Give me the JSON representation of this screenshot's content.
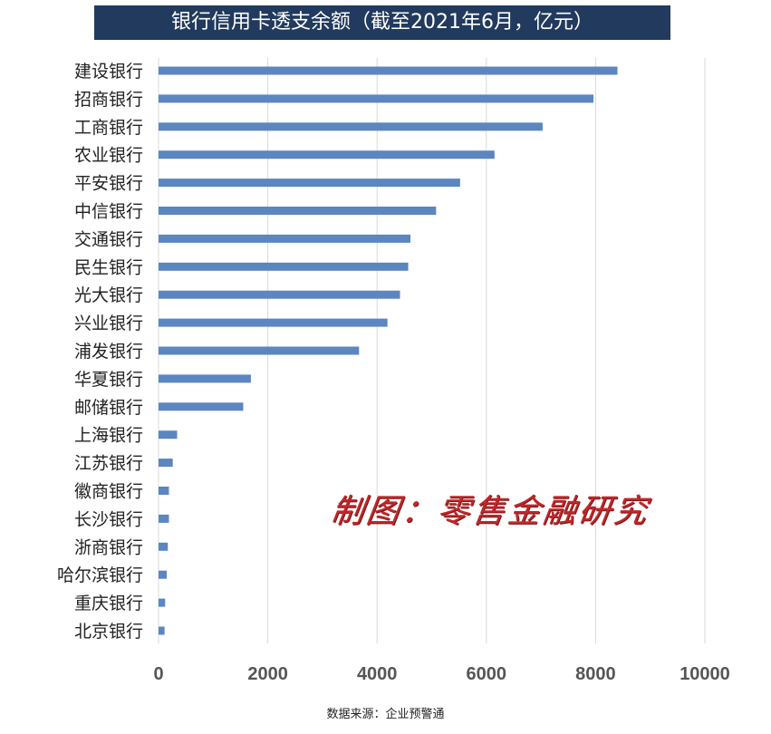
{
  "chart_data": {
    "type": "bar",
    "orientation": "horizontal",
    "title": "银行信用卡透支余额（截至2021年6月，亿元）",
    "categories": [
      "建设银行",
      "招商银行",
      "工商银行",
      "农业银行",
      "平安银行",
      "中信银行",
      "交通银行",
      "民生银行",
      "光大银行",
      "兴业银行",
      "浦发银行",
      "华夏银行",
      "邮储银行",
      "上海银行",
      "江苏银行",
      "徽商银行",
      "长沙银行",
      "浙商银行",
      "哈尔滨银行",
      "重庆银行",
      "北京银行"
    ],
    "values": [
      8400,
      7960,
      7030,
      6150,
      5520,
      5080,
      4610,
      4570,
      4420,
      4190,
      3670,
      1690,
      1550,
      340,
      260,
      190,
      190,
      170,
      150,
      120,
      110
    ],
    "xlim": [
      0,
      10000
    ],
    "xticks": [
      0,
      2000,
      4000,
      6000,
      8000,
      10000
    ],
    "xtick_labels": [
      "0",
      "2000",
      "4000",
      "6000",
      "8000",
      "10000"
    ],
    "grid": "vertical",
    "bar_color": "#5b86c0",
    "grid_color": "#d9d9d9"
  },
  "watermark": "制图：零售金融研究",
  "source": "数据来源：企业预警通",
  "colors": {
    "title_bg": "#213a5e",
    "title_text": "#ffffff",
    "watermark": "#c0282a"
  }
}
